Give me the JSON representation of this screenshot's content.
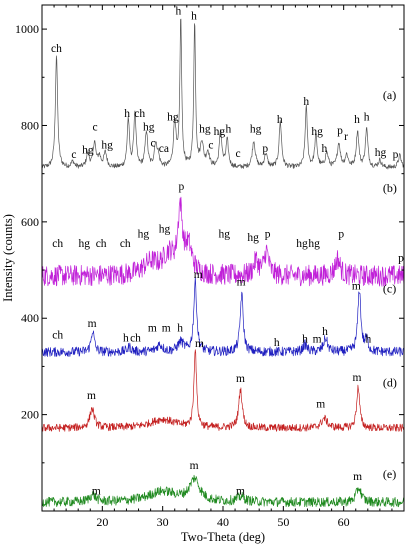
{
  "chart_data": {
    "type": "line",
    "xlabel": "Two-Theta (deg)",
    "ylabel": "Intensity (counts)",
    "xlim": [
      10,
      70
    ],
    "ylim": [
      0,
      1050
    ],
    "x_ticks": [
      20,
      30,
      40,
      50,
      60
    ],
    "y_ticks": [
      200,
      400,
      600,
      800,
      1000
    ],
    "series": [
      {
        "name": "(a)",
        "color": "#555555",
        "baseline": 712,
        "noise": 5,
        "peaks": [
          {
            "x": 12.4,
            "h": 235,
            "w": 0.22
          },
          {
            "x": 15.1,
            "h": 12,
            "w": 0.3
          },
          {
            "x": 17.6,
            "h": 28,
            "w": 0.3
          },
          {
            "x": 18.7,
            "h": 52,
            "w": 0.25
          },
          {
            "x": 19.5,
            "h": 22,
            "w": 0.3
          },
          {
            "x": 20.5,
            "h": 30,
            "w": 0.3
          },
          {
            "x": 24.3,
            "h": 100,
            "w": 0.22
          },
          {
            "x": 25.4,
            "h": 115,
            "w": 0.22
          },
          {
            "x": 27.3,
            "h": 75,
            "w": 0.25
          },
          {
            "x": 28.8,
            "h": 42,
            "w": 0.25
          },
          {
            "x": 29.2,
            "h": 25,
            "w": 0.3
          },
          {
            "x": 32.0,
            "h": 95,
            "w": 0.25
          },
          {
            "x": 33.0,
            "h": 310,
            "w": 0.18
          },
          {
            "x": 35.3,
            "h": 300,
            "w": 0.18
          },
          {
            "x": 36.5,
            "h": 50,
            "w": 0.3
          },
          {
            "x": 37.5,
            "h": 30,
            "w": 0.3
          },
          {
            "x": 39.6,
            "h": 75,
            "w": 0.25
          },
          {
            "x": 40.7,
            "h": 55,
            "w": 0.25
          },
          {
            "x": 45.1,
            "h": 55,
            "w": 0.3
          },
          {
            "x": 47.1,
            "h": 28,
            "w": 0.3
          },
          {
            "x": 49.5,
            "h": 95,
            "w": 0.25
          },
          {
            "x": 53.8,
            "h": 125,
            "w": 0.22
          },
          {
            "x": 55.4,
            "h": 65,
            "w": 0.25
          },
          {
            "x": 57.2,
            "h": 30,
            "w": 0.3
          },
          {
            "x": 59.2,
            "h": 50,
            "w": 0.3
          },
          {
            "x": 60.5,
            "h": 25,
            "w": 0.3
          },
          {
            "x": 62.3,
            "h": 75,
            "w": 0.25
          },
          {
            "x": 63.8,
            "h": 80,
            "w": 0.25
          },
          {
            "x": 66.0,
            "h": 15,
            "w": 0.3
          },
          {
            "x": 69.3,
            "h": 25,
            "w": 0.3
          }
        ],
        "label": "(a)",
        "label_x": 66.5,
        "label_y": 855
      },
      {
        "name": "(b)",
        "color": "#c020d8",
        "baseline": 488,
        "noise": 22,
        "peaks": [
          {
            "x": 28.0,
            "h": 25,
            "w": 1.5
          },
          {
            "x": 31.0,
            "h": 40,
            "w": 1.2
          },
          {
            "x": 32.9,
            "h": 130,
            "w": 0.45
          },
          {
            "x": 34.3,
            "h": 55,
            "w": 0.7
          },
          {
            "x": 45.5,
            "h": 30,
            "w": 0.5
          },
          {
            "x": 47.2,
            "h": 50,
            "w": 0.45
          },
          {
            "x": 59.0,
            "h": 35,
            "w": 0.5
          }
        ],
        "label": "(b)",
        "label_x": 66.5,
        "label_y": 662
      },
      {
        "name": "(c)",
        "color": "#2020c0",
        "baseline": 330,
        "noise": 10,
        "peaks": [
          {
            "x": 18.4,
            "h": 45,
            "w": 0.3
          },
          {
            "x": 24.5,
            "h": 10,
            "w": 0.4
          },
          {
            "x": 29.5,
            "h": 15,
            "w": 0.6
          },
          {
            "x": 33.0,
            "h": 20,
            "w": 0.6
          },
          {
            "x": 35.4,
            "h": 145,
            "w": 0.3
          },
          {
            "x": 43.1,
            "h": 120,
            "w": 0.3
          },
          {
            "x": 53.6,
            "h": 15,
            "w": 0.4
          },
          {
            "x": 57.0,
            "h": 28,
            "w": 0.4
          },
          {
            "x": 62.6,
            "h": 130,
            "w": 0.3
          },
          {
            "x": 63.8,
            "h": 25,
            "w": 0.3
          }
        ],
        "label": "(c)",
        "label_x": 66.5,
        "label_y": 453
      },
      {
        "name": "(d)",
        "color": "#c42020",
        "baseline": 172,
        "noise": 8,
        "peaks": [
          {
            "x": 18.3,
            "h": 40,
            "w": 0.45
          },
          {
            "x": 30.0,
            "h": 18,
            "w": 2.5
          },
          {
            "x": 35.4,
            "h": 165,
            "w": 0.25
          },
          {
            "x": 42.9,
            "h": 80,
            "w": 0.35
          },
          {
            "x": 56.8,
            "h": 20,
            "w": 0.6
          },
          {
            "x": 62.4,
            "h": 85,
            "w": 0.3
          }
        ],
        "label": "(d)",
        "label_x": 66.5,
        "label_y": 258
      },
      {
        "name": "(e)",
        "color": "#208a20",
        "baseline": 18,
        "noise": 10,
        "peaks": [
          {
            "x": 18.4,
            "h": 15,
            "w": 0.6
          },
          {
            "x": 30.0,
            "h": 22,
            "w": 3.0
          },
          {
            "x": 35.3,
            "h": 45,
            "w": 1.0
          },
          {
            "x": 43.0,
            "h": 10,
            "w": 0.8
          },
          {
            "x": 62.5,
            "h": 30,
            "w": 0.5
          }
        ],
        "label": "(e)",
        "label_x": 66.5,
        "label_y": 68
      }
    ],
    "annotations": [
      {
        "text": "ch",
        "x": 12.4,
        "y": 952
      },
      {
        "text": "c",
        "x": 15.3,
        "y": 733
      },
      {
        "text": "hg",
        "x": 17.6,
        "y": 742
      },
      {
        "text": "c",
        "x": 18.8,
        "y": 790
      },
      {
        "text": "hg",
        "x": 20.8,
        "y": 752
      },
      {
        "text": "h",
        "x": 24.1,
        "y": 818
      },
      {
        "text": "ch",
        "x": 26.2,
        "y": 818
      },
      {
        "text": "hg",
        "x": 27.7,
        "y": 790
      },
      {
        "text": "c",
        "x": 28.4,
        "y": 756
      },
      {
        "text": "ca",
        "x": 30.2,
        "y": 745
      },
      {
        "text": "hg",
        "x": 31.7,
        "y": 810
      },
      {
        "text": "h",
        "x": 32.6,
        "y": 1030
      },
      {
        "text": "h",
        "x": 35.2,
        "y": 1020
      },
      {
        "text": "hg",
        "x": 37.0,
        "y": 785
      },
      {
        "text": "c",
        "x": 38.0,
        "y": 752
      },
      {
        "text": "hg",
        "x": 39.4,
        "y": 780
      },
      {
        "text": "h",
        "x": 40.9,
        "y": 785
      },
      {
        "text": "c",
        "x": 42.5,
        "y": 735
      },
      {
        "text": "hg",
        "x": 45.4,
        "y": 785
      },
      {
        "text": "p",
        "x": 47.0,
        "y": 745
      },
      {
        "text": "h",
        "x": 49.4,
        "y": 805
      },
      {
        "text": "h",
        "x": 53.8,
        "y": 843
      },
      {
        "text": "hg",
        "x": 55.6,
        "y": 780
      },
      {
        "text": "h",
        "x": 56.8,
        "y": 745
      },
      {
        "text": "p",
        "x": 59.4,
        "y": 782
      },
      {
        "text": "r",
        "x": 60.4,
        "y": 770
      },
      {
        "text": "h",
        "x": 62.2,
        "y": 805
      },
      {
        "text": "h",
        "x": 63.8,
        "y": 810
      },
      {
        "text": "hg",
        "x": 66.1,
        "y": 737
      },
      {
        "text": "p",
        "x": 68.6,
        "y": 732
      },
      {
        "text": "ch",
        "x": 12.6,
        "y": 548
      },
      {
        "text": "hg",
        "x": 17.0,
        "y": 548
      },
      {
        "text": "ch",
        "x": 19.8,
        "y": 548
      },
      {
        "text": "ch",
        "x": 23.8,
        "y": 548
      },
      {
        "text": "hg",
        "x": 26.8,
        "y": 568
      },
      {
        "text": "hg",
        "x": 30.3,
        "y": 578
      },
      {
        "text": "p",
        "x": 33.1,
        "y": 666
      },
      {
        "text": "hg",
        "x": 40.2,
        "y": 568
      },
      {
        "text": "hg",
        "x": 45.0,
        "y": 560
      },
      {
        "text": "p",
        "x": 47.4,
        "y": 568
      },
      {
        "text": "hg",
        "x": 53.1,
        "y": 548
      },
      {
        "text": "hg",
        "x": 55.1,
        "y": 548
      },
      {
        "text": "p",
        "x": 59.6,
        "y": 568
      },
      {
        "text": "p",
        "x": 69.5,
        "y": 518
      },
      {
        "text": "ch",
        "x": 12.6,
        "y": 358
      },
      {
        "text": "m",
        "x": 18.3,
        "y": 382
      },
      {
        "text": "h",
        "x": 23.9,
        "y": 352
      },
      {
        "text": "ch",
        "x": 25.5,
        "y": 352
      },
      {
        "text": "m",
        "x": 28.3,
        "y": 372
      },
      {
        "text": "m",
        "x": 30.6,
        "y": 372
      },
      {
        "text": "h",
        "x": 32.9,
        "y": 372
      },
      {
        "text": "m",
        "x": 35.9,
        "y": 483
      },
      {
        "text": "m",
        "x": 43.0,
        "y": 468
      },
      {
        "text": "h",
        "x": 48.9,
        "y": 342
      },
      {
        "text": "h",
        "x": 53.6,
        "y": 350
      },
      {
        "text": "m",
        "x": 55.6,
        "y": 350
      },
      {
        "text": "h",
        "x": 56.9,
        "y": 365
      },
      {
        "text": "m",
        "x": 62.1,
        "y": 460
      },
      {
        "text": "h",
        "x": 64.1,
        "y": 350
      },
      {
        "text": "m",
        "x": 18.2,
        "y": 232
      },
      {
        "text": "m",
        "x": 36.1,
        "y": 340
      },
      {
        "text": "m",
        "x": 42.9,
        "y": 268
      },
      {
        "text": "m",
        "x": 56.2,
        "y": 215
      },
      {
        "text": "m",
        "x": 62.2,
        "y": 270
      },
      {
        "text": "m",
        "x": 19.0,
        "y": 34
      },
      {
        "text": "m",
        "x": 35.2,
        "y": 87
      },
      {
        "text": "m",
        "x": 42.9,
        "y": 34
      },
      {
        "text": "m",
        "x": 62.3,
        "y": 64
      }
    ]
  }
}
